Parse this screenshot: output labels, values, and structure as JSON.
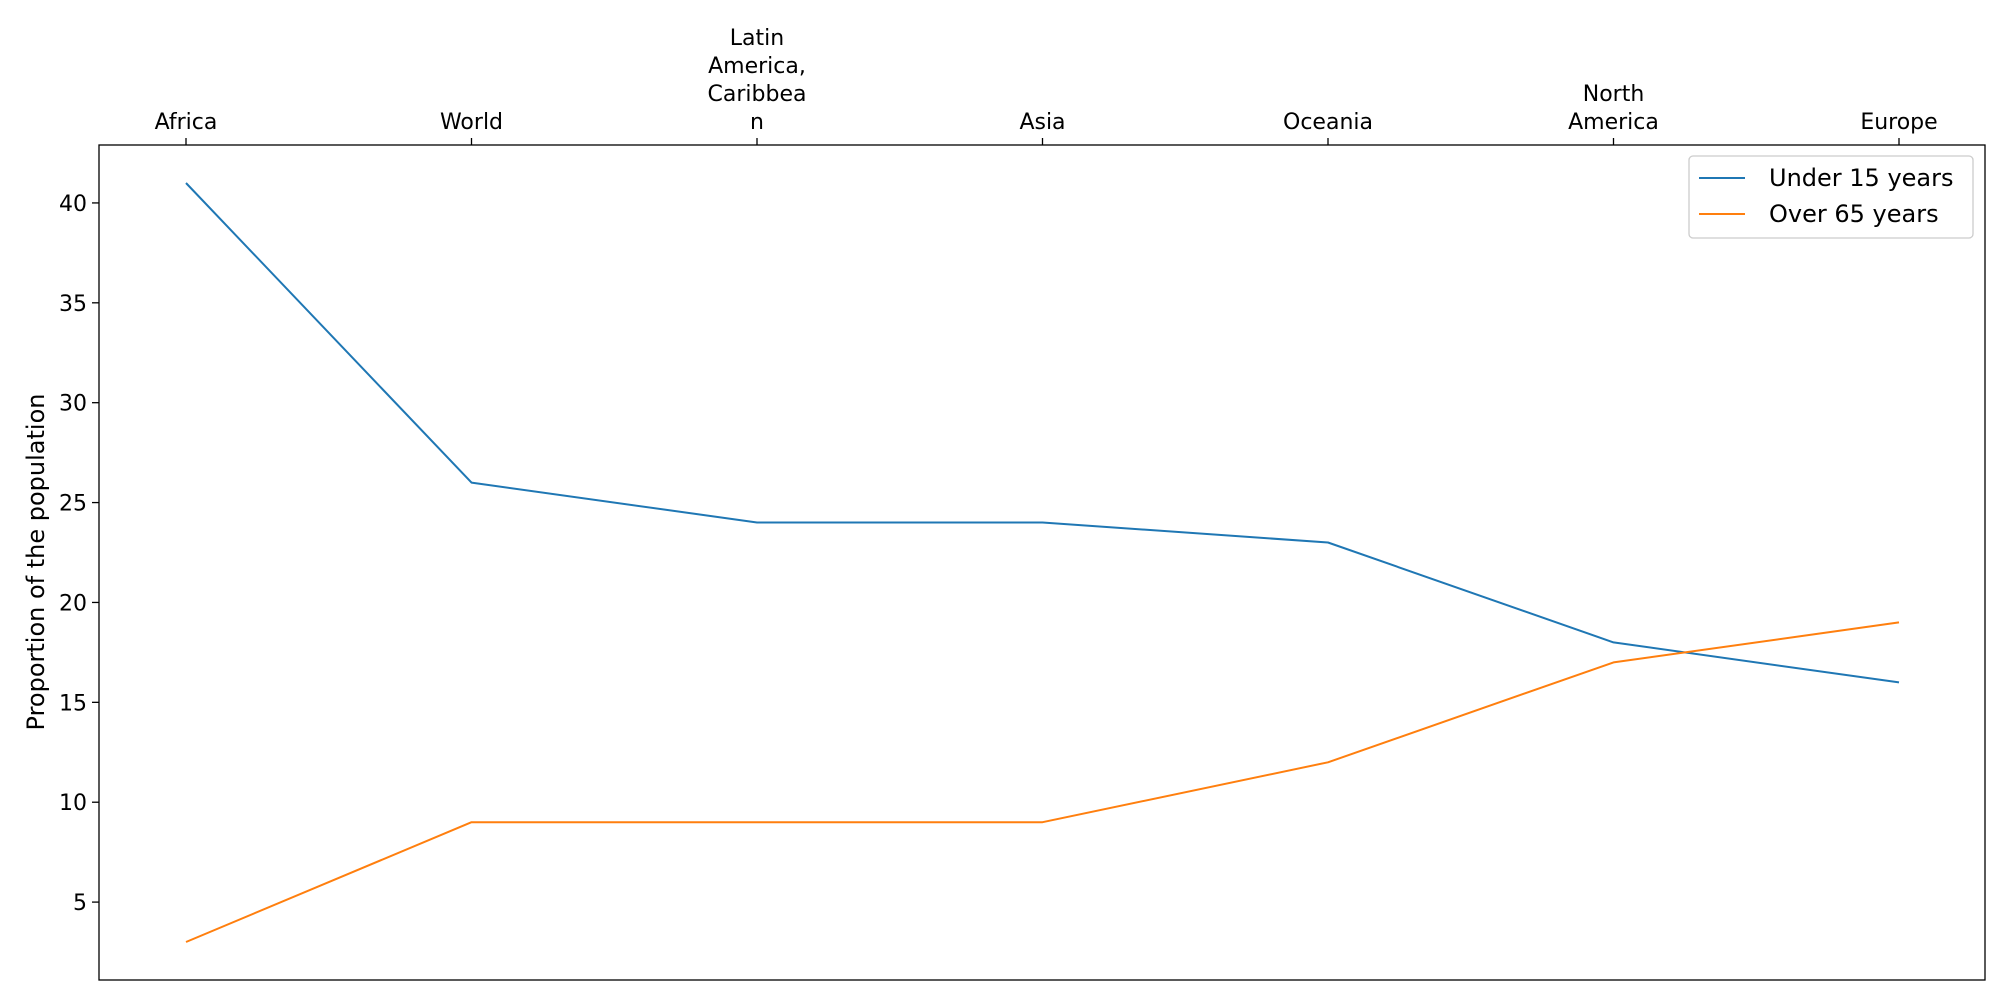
{
  "chart_data": {
    "type": "line",
    "categories": [
      [
        "Africa"
      ],
      [
        "World"
      ],
      [
        "Latin",
        "America,",
        "Caribbea",
        "n"
      ],
      [
        "Asia"
      ],
      [
        "Oceania"
      ],
      [
        "North",
        "America"
      ],
      [
        "Europe"
      ]
    ],
    "series": [
      {
        "name": "Under 15 years",
        "color": "#1f77b4",
        "values": [
          41,
          26,
          24,
          24,
          23,
          18,
          16
        ]
      },
      {
        "name": "Over 65 years",
        "color": "#ff7f0e",
        "values": [
          3,
          9,
          9,
          9,
          12,
          17,
          19
        ]
      }
    ],
    "ylabel": "Proportion of the population",
    "yticks": [
      5,
      10,
      15,
      20,
      25,
      30,
      35,
      40
    ],
    "ylim": [
      1.1,
      42.9
    ],
    "x_axis_position": "top",
    "legend_position": "top-right",
    "grid": false
  }
}
